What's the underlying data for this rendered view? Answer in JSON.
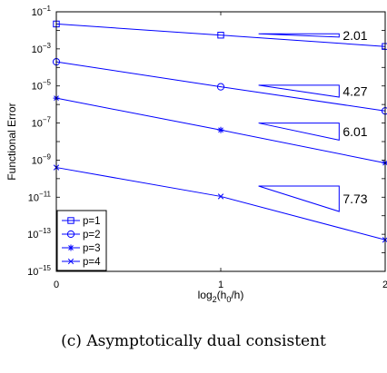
{
  "caption": "(c) Asymptotically dual consistent",
  "chart_data": {
    "type": "line",
    "xlabel": "log₂(h₀/h)",
    "ylabel": "Functional Error",
    "x": [
      0,
      1,
      2
    ],
    "xticks": [
      "0",
      "1",
      "2"
    ],
    "xlim": [
      0,
      2
    ],
    "ylim": [
      1e-15,
      0.1
    ],
    "yscale": "log",
    "yticks": [
      {
        "exp": -15,
        "base": "10",
        "power": "−15"
      },
      {
        "exp": -13,
        "base": "10",
        "power": "−13"
      },
      {
        "exp": -11,
        "base": "10",
        "power": "−11"
      },
      {
        "exp": -9,
        "base": "10",
        "power": "−9"
      },
      {
        "exp": -7,
        "base": "10",
        "power": "−7"
      },
      {
        "exp": -5,
        "base": "10",
        "power": "−5"
      },
      {
        "exp": -3,
        "base": "10",
        "power": "−3"
      },
      {
        "exp": -1,
        "base": "10",
        "power": "−1"
      }
    ],
    "color": "#0000ff",
    "legend_position": "bottom-left",
    "series": [
      {
        "name": "p=1",
        "marker": "square",
        "values": [
          0.022,
          0.0055,
          0.00135
        ]
      },
      {
        "name": "p=2",
        "marker": "circle",
        "values": [
          0.0002,
          9e-06,
          4.5e-07
        ]
      },
      {
        "name": "p=3",
        "marker": "asterisk",
        "values": [
          2.2e-06,
          4.2e-08,
          7e-10
        ]
      },
      {
        "name": "p=4",
        "marker": "x",
        "values": [
          4e-10,
          1.1e-11,
          5e-14
        ]
      }
    ],
    "slope_annotations": [
      {
        "label": "2.01",
        "x0": 1.23,
        "x1": 1.72,
        "y_top": 0.0065,
        "y_bottom": 0.0043
      },
      {
        "label": "4.27",
        "x0": 1.23,
        "x1": 1.72,
        "y_top": 1.1e-05,
        "y_bottom": 2.5e-06
      },
      {
        "label": "6.01",
        "x0": 1.23,
        "x1": 1.72,
        "y_top": 1e-07,
        "y_bottom": 1.2e-08
      },
      {
        "label": "7.73",
        "x0": 1.23,
        "x1": 1.72,
        "y_top": 4e-11,
        "y_bottom": 1.7e-12
      }
    ]
  }
}
